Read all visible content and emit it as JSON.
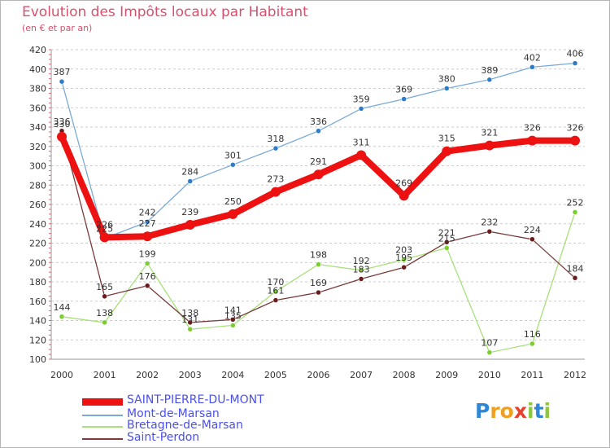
{
  "chart_data": {
    "type": "line",
    "title": "Evolution des Impôts locaux par Habitant",
    "subtitle": "(en € et par an)",
    "xlabel": "",
    "ylabel": "",
    "categories": [
      "2000",
      "2001",
      "2002",
      "2003",
      "2004",
      "2005",
      "2006",
      "2007",
      "2008",
      "2009",
      "2010",
      "2011",
      "2012"
    ],
    "ylim": [
      100,
      420
    ],
    "yticks": [
      100,
      120,
      140,
      160,
      180,
      200,
      220,
      240,
      260,
      280,
      300,
      320,
      340,
      360,
      380,
      400,
      420
    ],
    "grid": "horizontal-dashed",
    "legend_position": "bottom-left",
    "series": [
      {
        "name": "SAINT-PIERRE-DU-MONT",
        "color": "#ee1111",
        "point_color": "#ee1111",
        "values": [
          330,
          226,
          227,
          239,
          250,
          273,
          291,
          311,
          269,
          315,
          321,
          326,
          326
        ]
      },
      {
        "name": "Mont-de-Marsan",
        "color": "#7aaad8",
        "point_color": "#2f7bc8",
        "values": [
          387,
          225,
          242,
          284,
          301,
          318,
          336,
          359,
          369,
          380,
          389,
          402,
          406
        ]
      },
      {
        "name": "Bretagne-de-Marsan",
        "color": "#a8e07a",
        "point_color": "#7ccd32",
        "values": [
          144,
          138,
          199,
          131,
          135,
          170,
          198,
          192,
          203,
          215,
          107,
          116,
          252
        ]
      },
      {
        "name": "Saint-Perdon",
        "color": "#7a3b3b",
        "point_color": "#6a1c1c",
        "values": [
          336,
          165,
          176,
          138,
          141,
          161,
          169,
          183,
          195,
          221,
          232,
          224,
          184
        ]
      }
    ]
  },
  "logo": {
    "text_p": "P",
    "text_r": "r",
    "text_o": "o",
    "text_x": "x",
    "text_i": "i",
    "text_t": "t",
    "text_i2": "i"
  },
  "colors": {
    "title": "#d9506c",
    "legend_text": "#4a4ff2",
    "grid": "#cccccc"
  }
}
